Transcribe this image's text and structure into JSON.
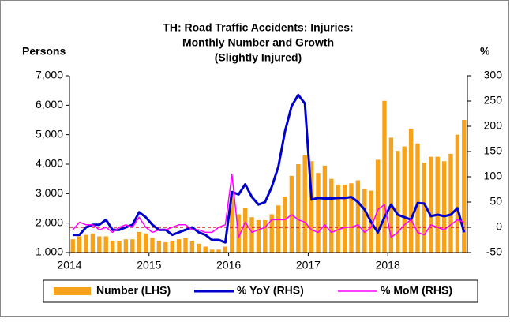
{
  "chart_data": {
    "type": "bar-line",
    "title": [
      "TH: Road Traffic Accidents: Injuries:",
      "Monthly Number and Growth",
      "(Slightly Injured)"
    ],
    "y_label": "Persons",
    "y2_label": "%",
    "categories": [
      "2014",
      null,
      null,
      null,
      null,
      null,
      null,
      null,
      null,
      null,
      null,
      null,
      "2015",
      null,
      null,
      null,
      null,
      null,
      null,
      null,
      null,
      null,
      null,
      null,
      "2016",
      null,
      null,
      null,
      null,
      null,
      null,
      null,
      null,
      null,
      null,
      null,
      "2017",
      null,
      null,
      null,
      null,
      null,
      null,
      null,
      null,
      null,
      null,
      null,
      "2018",
      null,
      null,
      null,
      null,
      null,
      null,
      null,
      null,
      null,
      null,
      null
    ],
    "ylim": [
      1000,
      7000
    ],
    "yticks": [
      {
        "value": 1000,
        "label": "1,000"
      },
      {
        "value": 2000,
        "label": "2,000"
      },
      {
        "value": 3000,
        "label": "3,000"
      },
      {
        "value": 4000,
        "label": "4,000"
      },
      {
        "value": 5000,
        "label": "5,000"
      },
      {
        "value": 6000,
        "label": "6,000"
      },
      {
        "value": 7000,
        "label": "7,000"
      }
    ],
    "y2lim": [
      -50,
      300
    ],
    "y2ticks": [
      -50,
      0,
      50,
      100,
      150,
      200,
      250,
      300
    ],
    "series": [
      {
        "name": "Number (LHS)",
        "kind": "bar",
        "color": "#f7a21b",
        "values": [
          1450,
          1550,
          1600,
          1650,
          1550,
          1550,
          1400,
          1400,
          1450,
          1450,
          1700,
          1650,
          1500,
          1400,
          1350,
          1400,
          1450,
          1500,
          1400,
          1300,
          1200,
          1100,
          1100,
          1200,
          3000,
          2300,
          2500,
          2200,
          2100,
          2100,
          2300,
          2600,
          2900,
          3600,
          4000,
          4300,
          4100,
          3700,
          3950,
          3500,
          3300,
          3300,
          3350,
          3450,
          3150,
          3100,
          4150,
          6150,
          4900,
          4450,
          4600,
          5200,
          4700,
          4050,
          4250,
          4250,
          4100,
          4350,
          5000,
          5500
        ]
      },
      {
        "name": "% YoY (RHS)",
        "kind": "line",
        "axis": "y2",
        "color": "#0000cc",
        "values": [
          -15,
          -15,
          0,
          5,
          5,
          15,
          -5,
          -5,
          0,
          5,
          30,
          20,
          5,
          -5,
          -5,
          -15,
          -10,
          -5,
          0,
          -10,
          -15,
          -25,
          -25,
          -30,
          70,
          65,
          85,
          60,
          45,
          50,
          80,
          120,
          190,
          240,
          262,
          245,
          55,
          58,
          57,
          57,
          58,
          58,
          60,
          50,
          35,
          10,
          -10,
          20,
          45,
          25,
          20,
          15,
          48,
          47,
          22,
          25,
          22,
          25,
          38,
          -10
        ]
      },
      {
        "name": "% MoM (RHS)",
        "kind": "line",
        "axis": "y2",
        "color": "#ff00ff",
        "values": [
          -5,
          10,
          5,
          5,
          -5,
          0,
          -10,
          0,
          5,
          0,
          20,
          0,
          -10,
          -5,
          -5,
          0,
          5,
          5,
          -5,
          -5,
          -10,
          -10,
          0,
          5,
          105,
          -20,
          10,
          -10,
          -5,
          0,
          15,
          15,
          15,
          25,
          15,
          10,
          -5,
          -10,
          5,
          -10,
          -5,
          0,
          0,
          5,
          -10,
          0,
          35,
          45,
          -20,
          -10,
          5,
          15,
          -10,
          -15,
          5,
          0,
          -5,
          5,
          15,
          10
        ]
      }
    ]
  }
}
